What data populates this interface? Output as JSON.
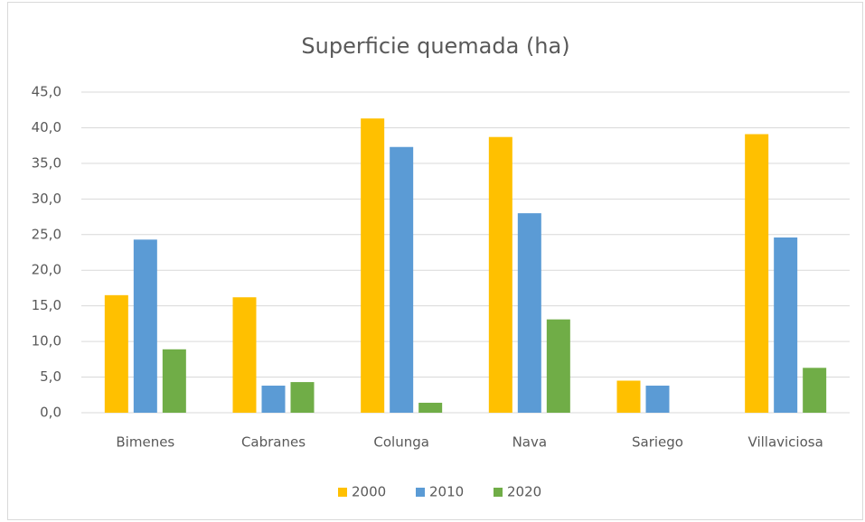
{
  "chart_data": {
    "type": "bar",
    "title": "Superficie quemada (ha)",
    "categories": [
      "Bimenes",
      "Cabranes",
      "Colunga",
      "Nava",
      "Sariego",
      "Villaviciosa"
    ],
    "series": [
      {
        "name": "2000",
        "color": "#ffc000",
        "values": [
          16.5,
          16.2,
          41.3,
          38.7,
          4.5,
          39.1
        ]
      },
      {
        "name": "2010",
        "color": "#5b9bd5",
        "values": [
          24.3,
          3.8,
          37.3,
          28.0,
          3.8,
          24.6
        ]
      },
      {
        "name": "2020",
        "color": "#70ad47",
        "values": [
          8.9,
          4.3,
          1.4,
          13.1,
          0,
          6.3
        ]
      }
    ],
    "ylim": [
      0,
      45
    ],
    "yticks": [
      {
        "value": 0,
        "label": "0,0"
      },
      {
        "value": 5,
        "label": "5,0"
      },
      {
        "value": 10,
        "label": "10,0"
      },
      {
        "value": 15,
        "label": "15,0"
      },
      {
        "value": 20,
        "label": "20,0"
      },
      {
        "value": 25,
        "label": "25,0"
      },
      {
        "value": 30,
        "label": "30,0"
      },
      {
        "value": 35,
        "label": "35,0"
      },
      {
        "value": 40,
        "label": "40,0"
      },
      {
        "value": 45,
        "label": "45,0"
      }
    ],
    "grid": true,
    "legend": "bottom"
  }
}
